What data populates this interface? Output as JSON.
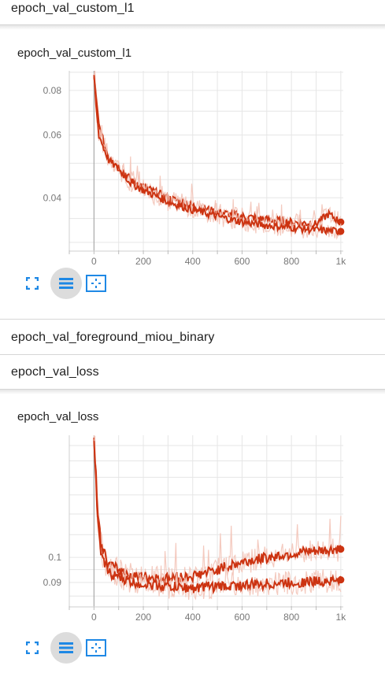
{
  "sections": [
    {
      "title": "epoch_val_custom_l1"
    },
    {
      "title": "epoch_val_foreground_miou_binary"
    },
    {
      "title": "epoch_val_loss"
    }
  ],
  "charts": [
    {
      "card_title": "epoch_val_custom_l1"
    },
    {
      "card_title": "epoch_val_loss"
    }
  ],
  "colors": {
    "series": "#cc3311",
    "raw": "#f3c4b8",
    "grid": "#e0e0e0",
    "icon": "#1e88e5"
  },
  "icons": [
    "fit-domain-icon",
    "toggle-log-scale-icon",
    "expand-icon"
  ],
  "chart_data": [
    {
      "type": "line",
      "title": "epoch_val_custom_l1",
      "x_ticks": [
        "0",
        "200",
        "400",
        "600",
        "800",
        "1k"
      ],
      "y_ticks": [
        "0.08",
        "0.06",
        "0.04"
      ],
      "xlim": [
        -100,
        1010
      ],
      "ylim": [
        0.0285,
        0.0908
      ],
      "y_scale": "log",
      "grid": true,
      "series": [
        {
          "points": [
            [
              0,
              0.088
            ],
            [
              10,
              0.074
            ],
            [
              20,
              0.064
            ],
            [
              40,
              0.057
            ],
            [
              60,
              0.052
            ],
            [
              100,
              0.049
            ],
            [
              150,
              0.045
            ],
            [
              200,
              0.043
            ],
            [
              300,
              0.04
            ],
            [
              400,
              0.038
            ],
            [
              500,
              0.0365
            ],
            [
              600,
              0.0355
            ],
            [
              700,
              0.0348
            ],
            [
              800,
              0.0342
            ],
            [
              900,
              0.0338
            ],
            [
              950,
              0.036
            ],
            [
              1000,
              0.0342
            ]
          ]
        },
        {
          "points": [
            [
              0,
              0.088
            ],
            [
              10,
              0.07
            ],
            [
              20,
              0.06
            ],
            [
              40,
              0.055
            ],
            [
              60,
              0.051
            ],
            [
              100,
              0.048
            ],
            [
              150,
              0.044
            ],
            [
              200,
              0.042
            ],
            [
              300,
              0.039
            ],
            [
              400,
              0.037
            ],
            [
              500,
              0.0355
            ],
            [
              600,
              0.0342
            ],
            [
              700,
              0.0335
            ],
            [
              800,
              0.033
            ],
            [
              900,
              0.0325
            ],
            [
              1000,
              0.0322
            ]
          ]
        }
      ]
    },
    {
      "type": "line",
      "title": "epoch_val_loss",
      "x_ticks": [
        "0",
        "200",
        "400",
        "600",
        "800",
        "1k"
      ],
      "y_ticks": [
        "0.1",
        "0.09"
      ],
      "xlim": [
        -100,
        1010
      ],
      "ylim": [
        0.0815,
        0.167
      ],
      "y_scale": "log",
      "grid": true,
      "series": [
        {
          "points": [
            [
              0,
              0.165
            ],
            [
              15,
              0.12
            ],
            [
              30,
              0.105
            ],
            [
              60,
              0.097
            ],
            [
              100,
              0.095
            ],
            [
              150,
              0.093
            ],
            [
              200,
              0.092
            ],
            [
              300,
              0.0915
            ],
            [
              400,
              0.0925
            ],
            [
              500,
              0.095
            ],
            [
              600,
              0.098
            ],
            [
              700,
              0.1
            ],
            [
              800,
              0.1015
            ],
            [
              900,
              0.1025
            ],
            [
              1000,
              0.1035
            ]
          ]
        },
        {
          "points": [
            [
              0,
              0.165
            ],
            [
              15,
              0.115
            ],
            [
              30,
              0.1
            ],
            [
              60,
              0.094
            ],
            [
              100,
              0.092
            ],
            [
              150,
              0.09
            ],
            [
              200,
              0.0895
            ],
            [
              300,
              0.0885
            ],
            [
              400,
              0.088
            ],
            [
              500,
              0.0885
            ],
            [
              600,
              0.089
            ],
            [
              700,
              0.0895
            ],
            [
              800,
              0.09
            ],
            [
              900,
              0.0905
            ],
            [
              1000,
              0.091
            ]
          ]
        }
      ]
    }
  ]
}
